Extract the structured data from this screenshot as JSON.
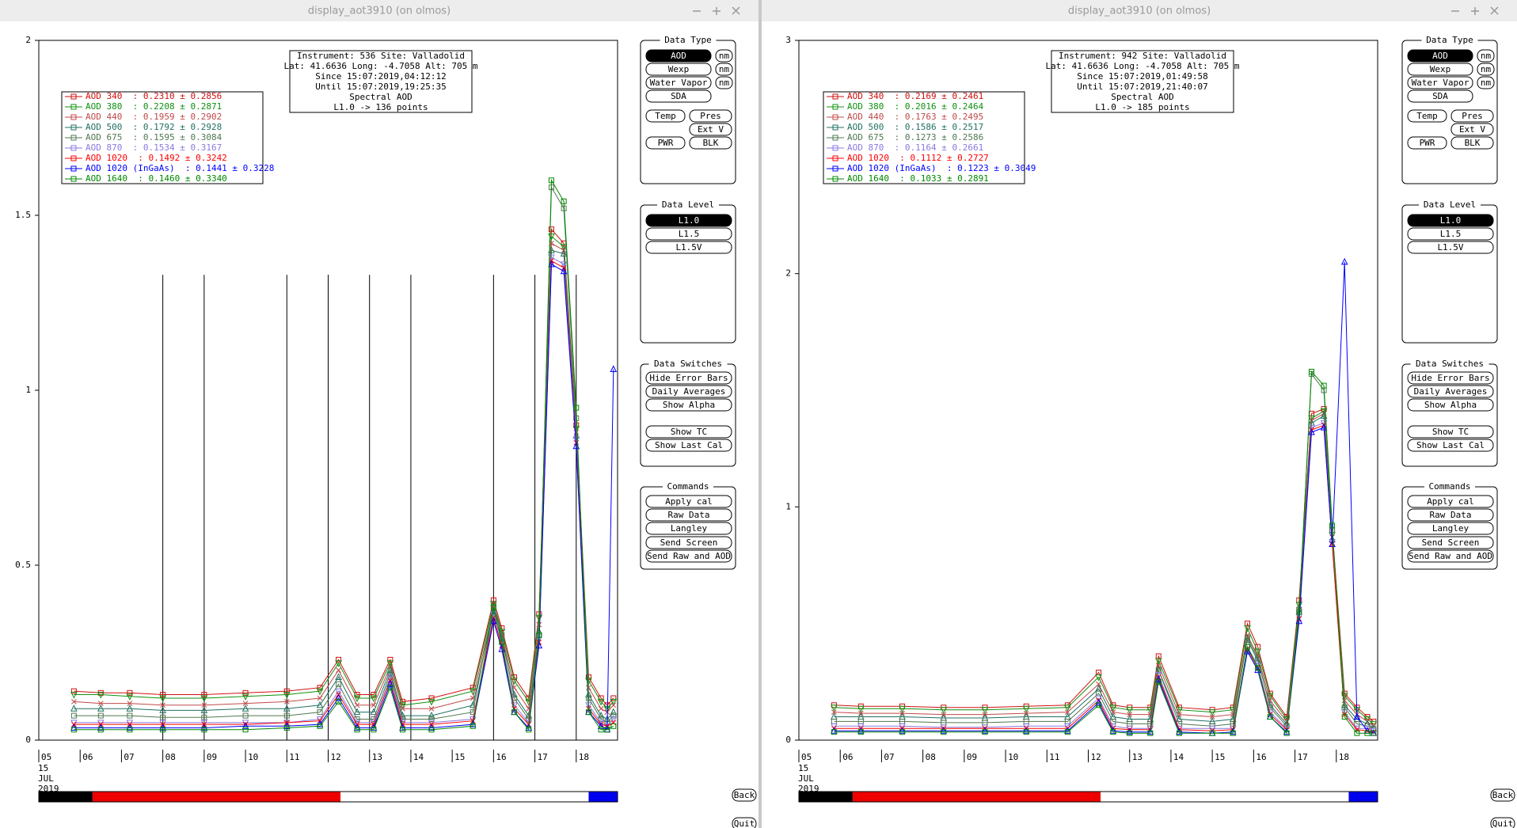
{
  "chart_data": [
    {
      "type": "line",
      "ylim": [
        0,
        2
      ],
      "yticks": [
        0,
        0.5,
        1,
        1.5,
        2
      ],
      "xlim": [
        5,
        19
      ],
      "xticks": [
        {
          "value": 5,
          "label": "05"
        },
        {
          "value": 6,
          "label": "06"
        },
        {
          "value": 7,
          "label": "07"
        },
        {
          "value": 8,
          "label": "08"
        },
        {
          "value": 9,
          "label": "09"
        },
        {
          "value": 10,
          "label": "10"
        },
        {
          "value": 11,
          "label": "11"
        },
        {
          "value": 12,
          "label": "12"
        },
        {
          "value": 13,
          "label": "13"
        },
        {
          "value": 14,
          "label": "14"
        },
        {
          "value": 15,
          "label": "15"
        },
        {
          "value": 16,
          "label": "16"
        },
        {
          "value": 17,
          "label": "17"
        },
        {
          "value": 18,
          "label": "18"
        }
      ],
      "date_lines": [
        "15",
        "JUL",
        "2019"
      ],
      "vlines": [
        8,
        9,
        11,
        12,
        13,
        14,
        16,
        17,
        18
      ],
      "vline_top": 1.33,
      "x": [
        5.85,
        6.5,
        7.2,
        8,
        9,
        10,
        11,
        11.8,
        12.25,
        12.7,
        13.1,
        13.5,
        13.8,
        14.5,
        15.5,
        16.0,
        16.2,
        16.5,
        16.85,
        17.1,
        17.4,
        17.7,
        18.0,
        18.3,
        18.6,
        18.75,
        18.9
      ],
      "series": [
        {
          "name": "AOD 340  : 0.2310 ± 0.2856",
          "color": "#d01010",
          "marker": "square",
          "values": [
            0.14,
            0.135,
            0.135,
            0.13,
            0.13,
            0.135,
            0.14,
            0.15,
            0.23,
            0.13,
            0.13,
            0.23,
            0.11,
            0.12,
            0.15,
            0.4,
            0.32,
            0.18,
            0.12,
            0.36,
            1.46,
            1.42,
            0.9,
            0.18,
            0.12,
            0.1,
            0.12
          ]
        },
        {
          "name": "AOD 380  : 0.2208 ± 0.2871",
          "color": "#109010",
          "marker": "down",
          "values": [
            0.13,
            0.13,
            0.125,
            0.12,
            0.12,
            0.125,
            0.13,
            0.14,
            0.22,
            0.12,
            0.12,
            0.22,
            0.1,
            0.11,
            0.14,
            0.39,
            0.31,
            0.17,
            0.11,
            0.35,
            1.44,
            1.41,
            0.89,
            0.17,
            0.11,
            0.09,
            0.11
          ]
        },
        {
          "name": "AOD 440  : 0.1959 ± 0.2902",
          "color": "#c04848",
          "marker": "x",
          "values": [
            0.11,
            0.105,
            0.105,
            0.1,
            0.1,
            0.105,
            0.11,
            0.12,
            0.2,
            0.1,
            0.1,
            0.21,
            0.09,
            0.09,
            0.12,
            0.38,
            0.3,
            0.15,
            0.09,
            0.33,
            1.42,
            1.4,
            0.88,
            0.15,
            0.09,
            0.08,
            0.1
          ]
        },
        {
          "name": "AOD 500  : 0.1792 ± 0.2928",
          "color": "#207060",
          "marker": "up",
          "values": [
            0.09,
            0.09,
            0.09,
            0.085,
            0.085,
            0.09,
            0.09,
            0.1,
            0.18,
            0.08,
            0.08,
            0.2,
            0.07,
            0.07,
            0.1,
            0.37,
            0.29,
            0.13,
            0.07,
            0.31,
            1.4,
            1.39,
            0.87,
            0.13,
            0.07,
            0.06,
            0.08
          ]
        },
        {
          "name": "AOD 675  : 0.1595 ± 0.3084",
          "color": "#507850",
          "marker": "square",
          "values": [
            0.07,
            0.07,
            0.07,
            0.065,
            0.065,
            0.07,
            0.07,
            0.08,
            0.16,
            0.06,
            0.06,
            0.19,
            0.06,
            0.06,
            0.08,
            0.39,
            0.3,
            0.12,
            0.06,
            0.3,
            1.58,
            1.52,
            0.92,
            0.12,
            0.06,
            0.05,
            0.07
          ]
        },
        {
          "name": "AOD 870  : 0.1534 ± 0.3167",
          "color": "#8a7ae0",
          "marker": "down",
          "values": [
            0.05,
            0.05,
            0.05,
            0.05,
            0.05,
            0.05,
            0.05,
            0.06,
            0.14,
            0.05,
            0.05,
            0.18,
            0.05,
            0.05,
            0.06,
            0.36,
            0.28,
            0.1,
            0.05,
            0.29,
            1.38,
            1.36,
            0.86,
            0.1,
            0.05,
            0.04,
            0.06
          ]
        },
        {
          "name": "AOD 1020  : 0.1492 ± 0.3242",
          "color": "#ff0000",
          "marker": "x",
          "values": [
            0.045,
            0.045,
            0.045,
            0.045,
            0.045,
            0.045,
            0.05,
            0.055,
            0.13,
            0.045,
            0.045,
            0.17,
            0.045,
            0.045,
            0.055,
            0.35,
            0.27,
            0.09,
            0.045,
            0.28,
            1.37,
            1.35,
            0.85,
            0.09,
            0.045,
            0.04,
            0.05
          ]
        },
        {
          "name": "AOD 1020 (InGaAs)  : 0.1441 ± 0.3228",
          "color": "#0000ff",
          "marker": "up",
          "values": [
            0.035,
            0.035,
            0.035,
            0.035,
            0.035,
            0.04,
            0.04,
            0.045,
            0.12,
            0.035,
            0.035,
            0.16,
            0.035,
            0.035,
            0.045,
            0.34,
            0.26,
            0.08,
            0.035,
            0.27,
            1.36,
            1.34,
            0.84,
            0.08,
            0.04,
            0.03,
            1.06
          ]
        },
        {
          "name": "AOD 1640  : 0.1460 ± 0.3340",
          "color": "#008800",
          "marker": "square",
          "values": [
            0.03,
            0.03,
            0.03,
            0.03,
            0.03,
            0.03,
            0.035,
            0.04,
            0.11,
            0.03,
            0.03,
            0.15,
            0.03,
            0.03,
            0.04,
            0.38,
            0.28,
            0.08,
            0.03,
            0.3,
            1.6,
            1.54,
            0.95,
            0.08,
            0.03,
            0.03,
            0.04
          ]
        }
      ]
    },
    {
      "type": "line",
      "ylim": [
        0,
        3
      ],
      "yticks": [
        0,
        1,
        2,
        3
      ],
      "xlim": [
        5,
        19
      ],
      "xticks": [
        {
          "value": 5,
          "label": "05"
        },
        {
          "value": 6,
          "label": "06"
        },
        {
          "value": 7,
          "label": "07"
        },
        {
          "value": 8,
          "label": "08"
        },
        {
          "value": 9,
          "label": "09"
        },
        {
          "value": 10,
          "label": "10"
        },
        {
          "value": 11,
          "label": "11"
        },
        {
          "value": 12,
          "label": "12"
        },
        {
          "value": 13,
          "label": "13"
        },
        {
          "value": 14,
          "label": "14"
        },
        {
          "value": 15,
          "label": "15"
        },
        {
          "value": 16,
          "label": "16"
        },
        {
          "value": 17,
          "label": "17"
        },
        {
          "value": 18,
          "label": "18"
        }
      ],
      "date_lines": [
        "15",
        "JUL",
        "2019"
      ],
      "x": [
        5.85,
        6.5,
        7.5,
        8.5,
        9.5,
        10.5,
        11.5,
        12.25,
        12.6,
        13.0,
        13.5,
        13.7,
        14.2,
        15.0,
        15.5,
        15.85,
        16.1,
        16.4,
        16.8,
        17.1,
        17.4,
        17.7,
        17.9,
        18.2,
        18.5,
        18.75,
        18.9
      ],
      "series": [
        {
          "name": "AOD 340  : 0.2169 ± 0.2461",
          "color": "#d01010",
          "marker": "square",
          "values": [
            0.15,
            0.145,
            0.145,
            0.14,
            0.14,
            0.145,
            0.15,
            0.29,
            0.15,
            0.14,
            0.14,
            0.36,
            0.14,
            0.13,
            0.14,
            0.5,
            0.4,
            0.2,
            0.1,
            0.6,
            1.4,
            1.42,
            0.9,
            0.2,
            0.14,
            0.1,
            0.08
          ]
        },
        {
          "name": "AOD 380  : 0.2016 ± 0.2464",
          "color": "#109010",
          "marker": "down",
          "values": [
            0.14,
            0.135,
            0.135,
            0.13,
            0.13,
            0.135,
            0.14,
            0.27,
            0.14,
            0.13,
            0.13,
            0.34,
            0.13,
            0.12,
            0.13,
            0.48,
            0.38,
            0.19,
            0.09,
            0.58,
            1.38,
            1.41,
            0.88,
            0.19,
            0.13,
            0.09,
            0.07
          ]
        },
        {
          "name": "AOD 440  : 0.1763 ± 0.2495",
          "color": "#c04848",
          "marker": "x",
          "values": [
            0.12,
            0.115,
            0.115,
            0.11,
            0.11,
            0.115,
            0.12,
            0.24,
            0.12,
            0.11,
            0.11,
            0.32,
            0.11,
            0.1,
            0.11,
            0.45,
            0.36,
            0.17,
            0.08,
            0.56,
            1.37,
            1.4,
            0.87,
            0.17,
            0.11,
            0.08,
            0.06
          ]
        },
        {
          "name": "AOD 500  : 0.1586 ± 0.2517",
          "color": "#207060",
          "marker": "up",
          "values": [
            0.1,
            0.1,
            0.1,
            0.095,
            0.095,
            0.1,
            0.1,
            0.22,
            0.1,
            0.09,
            0.09,
            0.3,
            0.09,
            0.08,
            0.09,
            0.43,
            0.34,
            0.15,
            0.07,
            0.55,
            1.36,
            1.39,
            0.86,
            0.15,
            0.09,
            0.07,
            0.05
          ]
        },
        {
          "name": "AOD 675  : 0.1273 ± 0.2586",
          "color": "#507850",
          "marker": "square",
          "values": [
            0.08,
            0.08,
            0.08,
            0.075,
            0.075,
            0.08,
            0.08,
            0.2,
            0.08,
            0.07,
            0.07,
            0.3,
            0.07,
            0.06,
            0.07,
            0.44,
            0.35,
            0.14,
            0.06,
            0.56,
            1.57,
            1.5,
            0.9,
            0.14,
            0.07,
            0.06,
            0.05
          ]
        },
        {
          "name": "AOD 870  : 0.1164 ± 0.2661",
          "color": "#8a7ae0",
          "marker": "down",
          "values": [
            0.06,
            0.06,
            0.06,
            0.055,
            0.055,
            0.06,
            0.06,
            0.18,
            0.06,
            0.05,
            0.05,
            0.28,
            0.05,
            0.05,
            0.05,
            0.4,
            0.32,
            0.12,
            0.05,
            0.53,
            1.34,
            1.36,
            0.85,
            0.12,
            0.05,
            0.05,
            0.04
          ]
        },
        {
          "name": "AOD 1020  : 0.1112 ± 0.2727",
          "color": "#ff0000",
          "marker": "x",
          "values": [
            0.05,
            0.05,
            0.05,
            0.05,
            0.05,
            0.05,
            0.05,
            0.17,
            0.05,
            0.045,
            0.045,
            0.27,
            0.045,
            0.04,
            0.045,
            0.39,
            0.31,
            0.11,
            0.045,
            0.52,
            1.33,
            1.35,
            0.84,
            0.11,
            0.045,
            0.04,
            0.035
          ]
        },
        {
          "name": "AOD 1020 (InGaAs)  : 0.1223 ± 0.3049",
          "color": "#0000ff",
          "marker": "up",
          "values": [
            0.04,
            0.04,
            0.04,
            0.04,
            0.04,
            0.04,
            0.04,
            0.16,
            0.04,
            0.035,
            0.035,
            0.26,
            0.035,
            0.03,
            0.035,
            0.38,
            0.3,
            0.1,
            0.035,
            0.51,
            1.32,
            1.34,
            0.84,
            2.05,
            0.1,
            0.04,
            0.03
          ]
        },
        {
          "name": "AOD 1640  : 0.1033 ± 0.2891",
          "color": "#008800",
          "marker": "square",
          "values": [
            0.035,
            0.035,
            0.035,
            0.035,
            0.035,
            0.035,
            0.035,
            0.15,
            0.035,
            0.03,
            0.03,
            0.25,
            0.03,
            0.03,
            0.03,
            0.4,
            0.31,
            0.1,
            0.03,
            0.55,
            1.58,
            1.52,
            0.92,
            0.1,
            0.03,
            0.03,
            0.03
          ]
        }
      ]
    }
  ],
  "ui": {
    "windows": [
      {
        "title": "display_aot3910 (on olmos)",
        "info": [
          "Instrument: 536 Site: Valladolid",
          "Lat: 41.6636 Long: -4.7058 Alt: 705 m",
          "Since 15:07:2019,04:12:12",
          "Until 15:07:2019,19:25:35",
          "Spectral AOD",
          "L1.0 -> 136 points"
        ],
        "panels": [
          {
            "title": "Data Type",
            "buttons": [
              "AOD",
              "Wexp",
              "Water Vapor",
              "SDA",
              "Temp",
              "Pres",
              "Ext V",
              "PWR",
              "BLK"
            ],
            "nm": [
              "nm",
              "nm",
              "nm"
            ],
            "selected": 0
          },
          {
            "title": "Data Level",
            "buttons": [
              "L1.0",
              "L1.5",
              "L1.5V"
            ],
            "selected": 0
          },
          {
            "title": "Data Switches",
            "buttons": [
              "Hide Error Bars",
              "Daily Averages",
              "Show Alpha",
              "Show TC",
              "Show Last Cal"
            ]
          },
          {
            "title": "Commands",
            "buttons": [
              "Apply cal",
              "Raw Data",
              "Langley",
              "Send Screen",
              "Send Raw and AOD"
            ]
          }
        ],
        "back": "Back",
        "quit": "Quit"
      },
      {
        "title": "display_aot3910 (on olmos)",
        "info": [
          "Instrument: 942 Site: Valladolid",
          "Lat: 41.6636 Long: -4.7058 Alt: 705 m",
          "Since 15:07:2019,01:49:58",
          "Until 15:07:2019,21:40:07",
          "Spectral AOD",
          "L1.0 -> 185 points"
        ],
        "panels": [
          {
            "title": "Data Type",
            "buttons": [
              "AOD",
              "Wexp",
              "Water Vapor",
              "SDA",
              "Temp",
              "Pres",
              "Ext V",
              "PWR",
              "BLK"
            ],
            "nm": [
              "nm",
              "nm",
              "nm"
            ],
            "selected": 0
          },
          {
            "title": "Data Level",
            "buttons": [
              "L1.0",
              "L1.5",
              "L1.5V"
            ],
            "selected": 0
          },
          {
            "title": "Data Switches",
            "buttons": [
              "Hide Error Bars",
              "Daily Averages",
              "Show Alpha",
              "Show TC",
              "Show Last Cal"
            ]
          },
          {
            "title": "Commands",
            "buttons": [
              "Apply cal",
              "Raw Data",
              "Langley",
              "Send Screen",
              "Send Raw and AOD"
            ]
          }
        ],
        "back": "Back",
        "quit": "Quit"
      }
    ]
  }
}
